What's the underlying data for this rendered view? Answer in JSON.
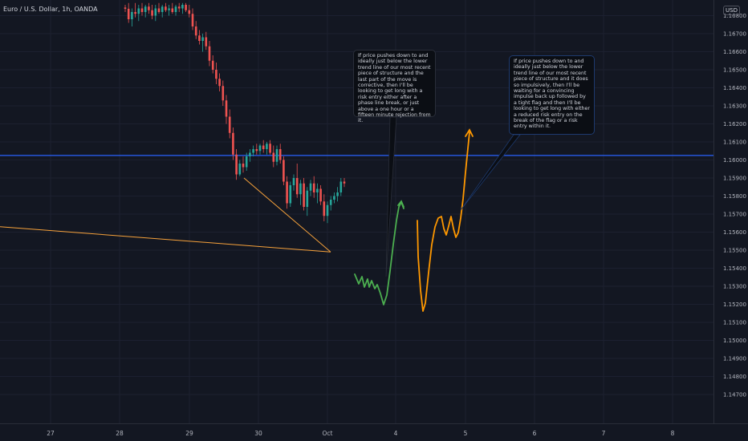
{
  "header": {
    "symbol_title": "Euro / U.S. Dollar, 1h, OANDA",
    "currency": "USD"
  },
  "notes": {
    "left": "If price pushes down to and ideally just below the lower trend line of our most recent piece of structure and the last part of the move is corrective, then I'll be looking to get long with a risk entry either after a phase line break, or just above a one hour or a fifteen minute rejection from it.",
    "right": "If price pushes down to and ideally just below the lower trend line of our most recent piece of structure and it does so impulsively, then I'll be waiting for a convincing impulse back up followed by a tight flag and then I'll be looking to get long with either a reduced risk entry on the break of the flag or a risk entry within it."
  },
  "colors": {
    "background": "#131722",
    "up": "#26a69a",
    "down": "#ef5350",
    "horizontal_line": "#2962ff",
    "trend_line": "#f7a23b",
    "projection_green": "#4caf50",
    "projection_orange": "#ff9800"
  },
  "chart_data": {
    "type": "candlestick",
    "symbol": "EURUSD",
    "timeframe": "1h",
    "x_ticks": [
      "27",
      "28",
      "29",
      "30",
      "Oct",
      "4",
      "5",
      "6",
      "7",
      "8"
    ],
    "y_ticks": [
      "1.16700",
      "1.16600",
      "1.16500",
      "1.16400",
      "1.16300",
      "1.16200",
      "1.16100",
      "1.16000",
      "1.15900",
      "1.15800",
      "1.15700",
      "1.15600",
      "1.15500",
      "1.15400",
      "1.15300",
      "1.15200",
      "1.15100",
      "1.15000",
      "1.14900",
      "1.14800",
      "1.14700"
    ],
    "y_top_partial_label": "1.16800",
    "y_range": [
      1.1465,
      1.1685
    ],
    "horizontal_line_price": 1.16025,
    "candles": [
      {
        "o": 1.16845,
        "h": 1.1686,
        "l": 1.1682,
        "c": 1.16838
      },
      {
        "o": 1.16838,
        "h": 1.1687,
        "l": 1.1676,
        "c": 1.1678
      },
      {
        "o": 1.1678,
        "h": 1.1684,
        "l": 1.1674,
        "c": 1.1682
      },
      {
        "o": 1.1682,
        "h": 1.1687,
        "l": 1.1679,
        "c": 1.1681
      },
      {
        "o": 1.1681,
        "h": 1.1686,
        "l": 1.1677,
        "c": 1.1684
      },
      {
        "o": 1.1684,
        "h": 1.1687,
        "l": 1.168,
        "c": 1.1682
      },
      {
        "o": 1.1682,
        "h": 1.1686,
        "l": 1.1679,
        "c": 1.1685
      },
      {
        "o": 1.1685,
        "h": 1.1687,
        "l": 1.1681,
        "c": 1.1683
      },
      {
        "o": 1.1683,
        "h": 1.1686,
        "l": 1.1678,
        "c": 1.168
      },
      {
        "o": 1.168,
        "h": 1.1686,
        "l": 1.1677,
        "c": 1.1684
      },
      {
        "o": 1.1684,
        "h": 1.1687,
        "l": 1.1681,
        "c": 1.1682
      },
      {
        "o": 1.1682,
        "h": 1.1686,
        "l": 1.1679,
        "c": 1.1685
      },
      {
        "o": 1.1685,
        "h": 1.1687,
        "l": 1.1682,
        "c": 1.1683
      },
      {
        "o": 1.1683,
        "h": 1.1686,
        "l": 1.168,
        "c": 1.1684
      },
      {
        "o": 1.1684,
        "h": 1.1687,
        "l": 1.1681,
        "c": 1.1682
      },
      {
        "o": 1.1682,
        "h": 1.1686,
        "l": 1.168,
        "c": 1.1685
      },
      {
        "o": 1.1685,
        "h": 1.1687,
        "l": 1.1682,
        "c": 1.1684
      },
      {
        "o": 1.1684,
        "h": 1.1687,
        "l": 1.1681,
        "c": 1.1686
      },
      {
        "o": 1.1686,
        "h": 1.1687,
        "l": 1.1682,
        "c": 1.1683
      },
      {
        "o": 1.1683,
        "h": 1.1686,
        "l": 1.1679,
        "c": 1.1681
      },
      {
        "o": 1.1681,
        "h": 1.1684,
        "l": 1.1672,
        "c": 1.1674
      },
      {
        "o": 1.1674,
        "h": 1.1677,
        "l": 1.1667,
        "c": 1.1669
      },
      {
        "o": 1.1669,
        "h": 1.1672,
        "l": 1.1664,
        "c": 1.1666
      },
      {
        "o": 1.1666,
        "h": 1.167,
        "l": 1.166,
        "c": 1.1668
      },
      {
        "o": 1.1668,
        "h": 1.1671,
        "l": 1.1661,
        "c": 1.1663
      },
      {
        "o": 1.1663,
        "h": 1.1666,
        "l": 1.1652,
        "c": 1.1655
      },
      {
        "o": 1.1655,
        "h": 1.1658,
        "l": 1.1648,
        "c": 1.165
      },
      {
        "o": 1.165,
        "h": 1.1654,
        "l": 1.1642,
        "c": 1.1645
      },
      {
        "o": 1.1645,
        "h": 1.1648,
        "l": 1.1638,
        "c": 1.1641
      },
      {
        "o": 1.1641,
        "h": 1.1644,
        "l": 1.163,
        "c": 1.1633
      },
      {
        "o": 1.1633,
        "h": 1.1636,
        "l": 1.162,
        "c": 1.1624
      },
      {
        "o": 1.1624,
        "h": 1.1628,
        "l": 1.1612,
        "c": 1.1615
      },
      {
        "o": 1.1615,
        "h": 1.1618,
        "l": 1.16,
        "c": 1.1603
      },
      {
        "o": 1.1603,
        "h": 1.1606,
        "l": 1.1589,
        "c": 1.1592
      },
      {
        "o": 1.1592,
        "h": 1.16,
        "l": 1.1591,
        "c": 1.1598
      },
      {
        "o": 1.1598,
        "h": 1.1602,
        "l": 1.1593,
        "c": 1.1596
      },
      {
        "o": 1.1596,
        "h": 1.1604,
        "l": 1.1594,
        "c": 1.1602
      },
      {
        "o": 1.1602,
        "h": 1.1606,
        "l": 1.1599,
        "c": 1.1604
      },
      {
        "o": 1.1604,
        "h": 1.1608,
        "l": 1.1602,
        "c": 1.1606
      },
      {
        "o": 1.1606,
        "h": 1.1609,
        "l": 1.1603,
        "c": 1.1605
      },
      {
        "o": 1.1605,
        "h": 1.1609,
        "l": 1.1603,
        "c": 1.1608
      },
      {
        "o": 1.1608,
        "h": 1.1611,
        "l": 1.1604,
        "c": 1.1606
      },
      {
        "o": 1.1606,
        "h": 1.161,
        "l": 1.1603,
        "c": 1.1609
      },
      {
        "o": 1.1609,
        "h": 1.1611,
        "l": 1.1603,
        "c": 1.1604
      },
      {
        "o": 1.1604,
        "h": 1.1608,
        "l": 1.1596,
        "c": 1.1599
      },
      {
        "o": 1.1599,
        "h": 1.1608,
        "l": 1.1597,
        "c": 1.1606
      },
      {
        "o": 1.1606,
        "h": 1.1609,
        "l": 1.1598,
        "c": 1.16
      },
      {
        "o": 1.16,
        "h": 1.1602,
        "l": 1.1586,
        "c": 1.1588
      },
      {
        "o": 1.1588,
        "h": 1.1591,
        "l": 1.1573,
        "c": 1.1576
      },
      {
        "o": 1.1576,
        "h": 1.1588,
        "l": 1.1574,
        "c": 1.1586
      },
      {
        "o": 1.1586,
        "h": 1.1592,
        "l": 1.1583,
        "c": 1.159
      },
      {
        "o": 1.159,
        "h": 1.1598,
        "l": 1.1579,
        "c": 1.1581
      },
      {
        "o": 1.1581,
        "h": 1.1589,
        "l": 1.1575,
        "c": 1.1587
      },
      {
        "o": 1.1587,
        "h": 1.159,
        "l": 1.1572,
        "c": 1.1574
      },
      {
        "o": 1.1574,
        "h": 1.1585,
        "l": 1.1569,
        "c": 1.1583
      },
      {
        "o": 1.1583,
        "h": 1.1589,
        "l": 1.158,
        "c": 1.1587
      },
      {
        "o": 1.1587,
        "h": 1.1591,
        "l": 1.1579,
        "c": 1.1582
      },
      {
        "o": 1.1582,
        "h": 1.1587,
        "l": 1.1576,
        "c": 1.1584
      },
      {
        "o": 1.1584,
        "h": 1.1586,
        "l": 1.1575,
        "c": 1.1577
      },
      {
        "o": 1.1577,
        "h": 1.1581,
        "l": 1.1566,
        "c": 1.1569
      },
      {
        "o": 1.1569,
        "h": 1.1577,
        "l": 1.1565,
        "c": 1.1575
      },
      {
        "o": 1.1575,
        "h": 1.158,
        "l": 1.1572,
        "c": 1.1578
      },
      {
        "o": 1.1578,
        "h": 1.1582,
        "l": 1.1576,
        "c": 1.158
      },
      {
        "o": 1.158,
        "h": 1.1585,
        "l": 1.1577,
        "c": 1.1582
      },
      {
        "o": 1.1582,
        "h": 1.159,
        "l": 1.158,
        "c": 1.1588
      },
      {
        "o": 1.1588,
        "h": 1.159,
        "l": 1.1585,
        "c": 1.1587
      }
    ],
    "trend_lines": [
      {
        "from": [
          0,
          1.1563
        ],
        "to": [
          412,
          1.1549
        ]
      },
      {
        "from": [
          304,
          1.159
        ],
        "to": [
          412,
          1.1549
        ]
      }
    ]
  }
}
